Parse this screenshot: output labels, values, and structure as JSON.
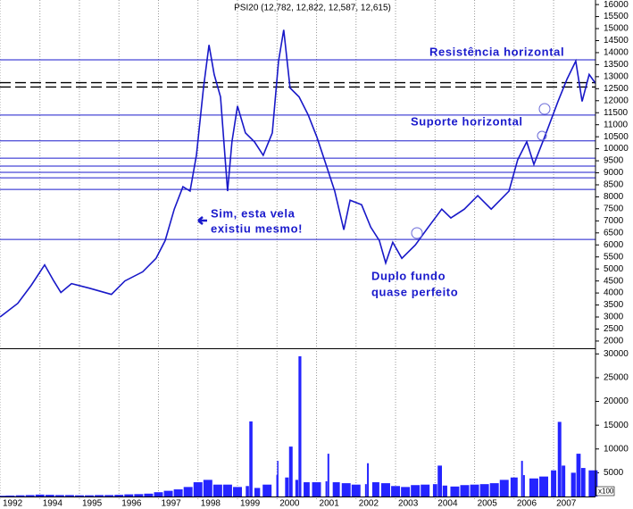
{
  "chart_data": [
    {
      "type": "line",
      "title": "PSI20 (12,782, 12,822, 12,587, 12,615)",
      "x": [
        1992.99,
        1993.44,
        1993.78,
        1994.12,
        1994.35,
        1994.53,
        1994.8,
        1995.25,
        1995.81,
        1996.15,
        1996.6,
        1996.94,
        1997.17,
        1997.4,
        1997.62,
        1997.8,
        1997.96,
        1998.14,
        1998.28,
        1998.41,
        1998.57,
        1998.75,
        1998.86,
        1999.0,
        1999.2,
        1999.43,
        1999.65,
        1999.88,
        2000.04,
        2000.17,
        2000.33,
        2000.56,
        2000.79,
        2001.01,
        2001.24,
        2001.46,
        2001.69,
        2001.85,
        2002.14,
        2002.37,
        2002.59,
        2002.75,
        2002.93,
        2003.16,
        2003.5,
        2003.83,
        2004.17,
        2004.4,
        2004.74,
        2005.08,
        2005.42,
        2005.87,
        2006.09,
        2006.32,
        2006.5,
        2006.77,
        2007.11,
        2007.34,
        2007.56,
        2007.72,
        2007.9,
        2008.06
      ],
      "values": [
        3000,
        3570,
        4320,
        5170,
        4500,
        4020,
        4390,
        4200,
        3940,
        4500,
        4880,
        5440,
        6180,
        7490,
        8420,
        8240,
        9730,
        12530,
        14320,
        13090,
        12160,
        8240,
        10290,
        11780,
        10660,
        10290,
        9730,
        10660,
        13650,
        14950,
        12530,
        12160,
        11410,
        10480,
        9350,
        8240,
        6630,
        7860,
        7670,
        6740,
        6180,
        5250,
        6110,
        5440,
        6000,
        6740,
        7490,
        7120,
        7490,
        8050,
        7490,
        8240,
        9540,
        10290,
        9350,
        10480,
        11970,
        12900,
        13650,
        11970,
        13090,
        12720
      ],
      "color": "#1818c8",
      "xlim": [
        1992.99,
        2008.06
      ],
      "xticks": [
        {
          "value": 1992.99,
          "label": "1992"
        },
        1994,
        1995,
        1996,
        1997,
        1998,
        1999,
        2000,
        2001,
        2002,
        2003,
        2004,
        2005,
        2006,
        2007
      ],
      "ylim": [
        1700,
        16190
      ],
      "yticks": [
        2000,
        2500,
        3000,
        3500,
        4000,
        4500,
        5000,
        5500,
        6000,
        6500,
        7000,
        7500,
        8000,
        8500,
        9000,
        9500,
        10000,
        10500,
        11000,
        11500,
        12000,
        12500,
        13000,
        13500,
        14000,
        14500,
        15000,
        15500,
        16000
      ],
      "levels": [
        13700,
        11400,
        10330,
        9610,
        9280,
        9020,
        8790,
        8310,
        6230
      ],
      "dashed_levels": [
        12750,
        12570
      ],
      "level_color": "#1a1acc",
      "annotations": [
        "Resistência horizontal",
        "Suporte horizontal",
        "Sim, esta vela",
        "existiu mesmo!",
        "Duplo fundo",
        "quase perfeito"
      ]
    },
    {
      "type": "bar",
      "x": [
        1993,
        1993.25,
        1993.5,
        1993.75,
        1994,
        1994.25,
        1994.5,
        1994.75,
        1995,
        1995.25,
        1995.5,
        1995.75,
        1996,
        1996.25,
        1996.5,
        1996.75,
        1997,
        1997.25,
        1997.5,
        1997.75,
        1998,
        1998.25,
        1998.5,
        1998.75,
        1999,
        1999.25,
        1999.34,
        1999.5,
        1999.75,
        2000,
        2000.02,
        2000.25,
        2000.35,
        2000.5,
        2000.58,
        2000.75,
        2001,
        2001.25,
        2001.3,
        2001.5,
        2001.75,
        2002,
        2002.25,
        2002.3,
        2002.5,
        2002.75,
        2003,
        2003.25,
        2003.5,
        2003.75,
        2004,
        2004.12,
        2004.25,
        2004.5,
        2004.75,
        2005,
        2005.25,
        2005.5,
        2005.75,
        2006,
        2006.2,
        2006.25,
        2006.5,
        2006.75,
        2007,
        2007.15,
        2007.25,
        2007.5,
        2007.63,
        2007.75,
        2008
      ],
      "values": [
        150,
        200,
        250,
        300,
        400,
        350,
        300,
        300,
        250,
        250,
        300,
        300,
        350,
        450,
        500,
        600,
        900,
        1200,
        1500,
        2000,
        3000,
        3500,
        2500,
        2500,
        2000,
        2200,
        15800,
        1800,
        2500,
        4500,
        7500,
        4000,
        10500,
        3500,
        29500,
        3000,
        3000,
        3200,
        9000,
        3000,
        2800,
        2500,
        2600,
        7000,
        3000,
        2800,
        2200,
        2000,
        2400,
        2500,
        2600,
        6500,
        2300,
        2100,
        2400,
        2500,
        2600,
        2800,
        3500,
        4000,
        7500,
        4500,
        3800,
        4200,
        5500,
        15700,
        6500,
        5000,
        9000,
        6000,
        5500
      ],
      "color": "#2424ff",
      "xlim": [
        1992.99,
        2008.06
      ],
      "ylim": [
        0,
        31000
      ],
      "yticks": [
        5000,
        10000,
        15000,
        20000,
        25000,
        30000
      ],
      "unit_label": "x100"
    }
  ]
}
